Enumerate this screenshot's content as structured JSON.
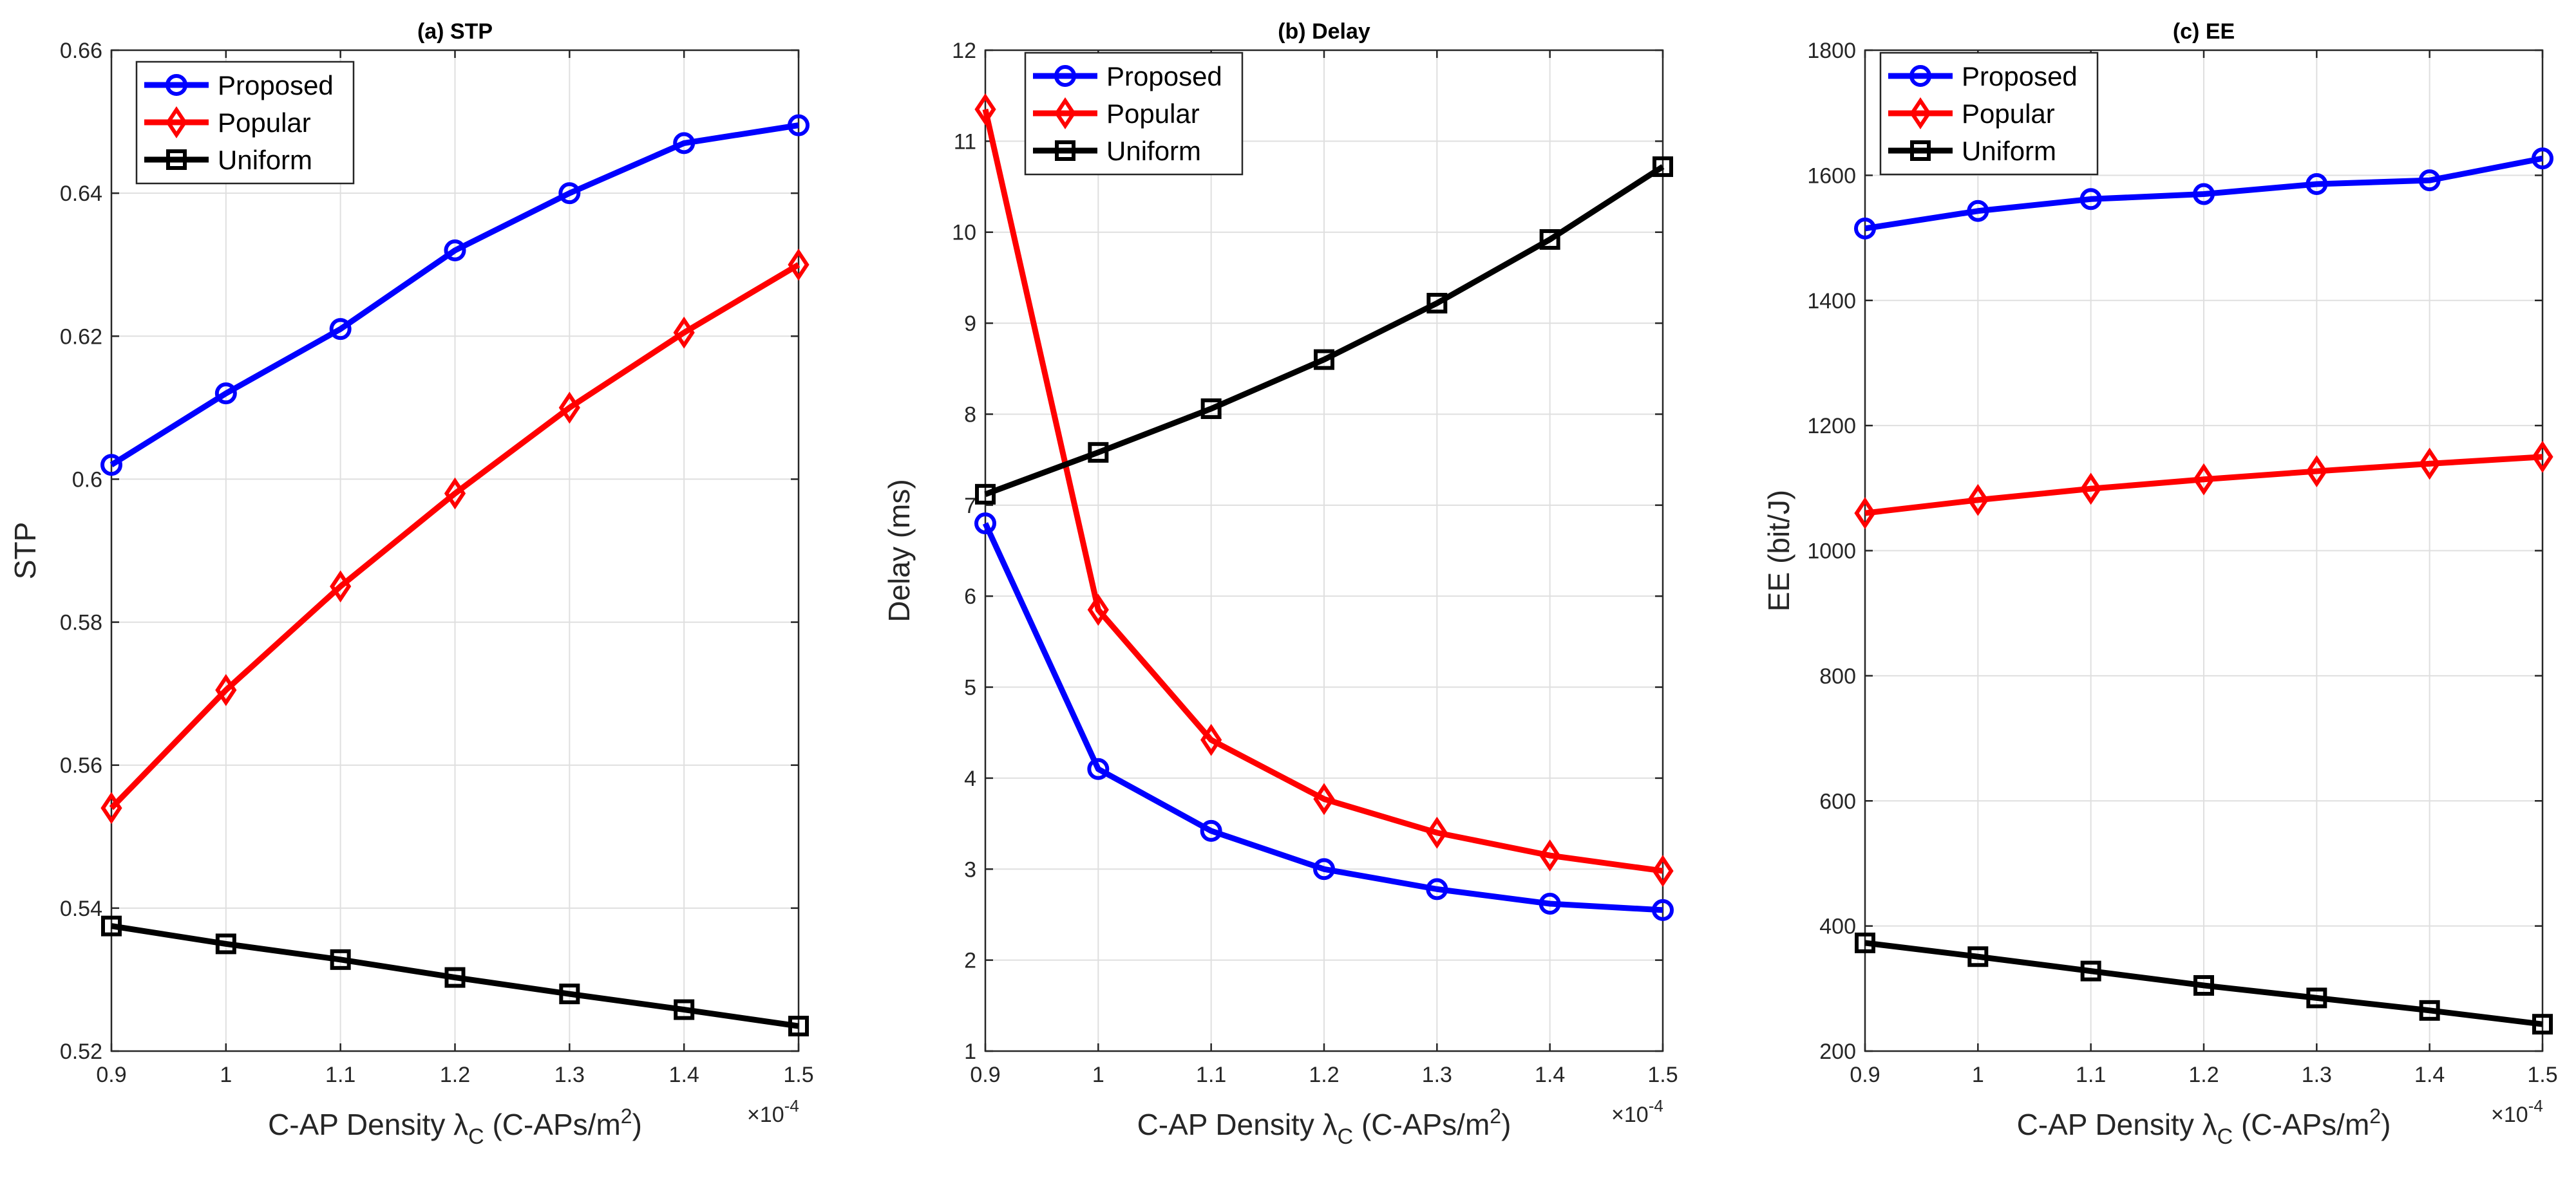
{
  "chart_data": [
    {
      "type": "line",
      "title": "(a) STP",
      "xlabel": "C-AP Density λ",
      "xlabel_sub": "C",
      "xlabel_unit_pre": " (C-APs/m",
      "xlabel_unit_sup": "2",
      "xlabel_unit_post": ")",
      "x_multiplier": "×10",
      "x_multiplier_exp": "-4",
      "ylabel": "STP",
      "x": [
        0.9,
        1.0,
        1.1,
        1.2,
        1.3,
        1.4,
        1.5
      ],
      "xlim": [
        0.9,
        1.5
      ],
      "ylim": [
        0.52,
        0.66
      ],
      "xticks": [
        0.9,
        1.0,
        1.1,
        1.2,
        1.3,
        1.4,
        1.5
      ],
      "xtick_labels": [
        "0.9",
        "1",
        "1.1",
        "1.2",
        "1.3",
        "1.4",
        "1.5"
      ],
      "yticks": [
        0.52,
        0.54,
        0.56,
        0.58,
        0.6,
        0.62,
        0.64,
        0.66
      ],
      "ytick_labels": [
        "0.52",
        "0.54",
        "0.56",
        "0.58",
        "0.6",
        "0.62",
        "0.64",
        "0.66"
      ],
      "grid": true,
      "legend_position": "top-left",
      "series": [
        {
          "name": "Proposed",
          "color": "#0000ff",
          "marker": "circle",
          "values": [
            0.602,
            0.612,
            0.621,
            0.632,
            0.64,
            0.647,
            0.6495
          ]
        },
        {
          "name": "Popular",
          "color": "#ff0000",
          "marker": "diamond",
          "values": [
            0.554,
            0.5705,
            0.585,
            0.598,
            0.61,
            0.6205,
            0.63
          ]
        },
        {
          "name": "Uniform",
          "color": "#000000",
          "marker": "square",
          "values": [
            0.5375,
            0.535,
            0.5328,
            0.5303,
            0.528,
            0.5258,
            0.5235
          ]
        }
      ]
    },
    {
      "type": "line",
      "title": "(b) Delay",
      "xlabel": "C-AP Density λ",
      "xlabel_sub": "C",
      "xlabel_unit_pre": " (C-APs/m",
      "xlabel_unit_sup": "2",
      "xlabel_unit_post": ")",
      "x_multiplier": "×10",
      "x_multiplier_exp": "-4",
      "ylabel": "Delay (ms)",
      "x": [
        0.9,
        1.0,
        1.1,
        1.2,
        1.3,
        1.4,
        1.5
      ],
      "xlim": [
        0.9,
        1.5
      ],
      "ylim": [
        1,
        12
      ],
      "xticks": [
        0.9,
        1.0,
        1.1,
        1.2,
        1.3,
        1.4,
        1.5
      ],
      "xtick_labels": [
        "0.9",
        "1",
        "1.1",
        "1.2",
        "1.3",
        "1.4",
        "1.5"
      ],
      "yticks": [
        1,
        2,
        3,
        4,
        5,
        6,
        7,
        8,
        9,
        10,
        11,
        12
      ],
      "ytick_labels": [
        "1",
        "2",
        "3",
        "4",
        "5",
        "6",
        "7",
        "8",
        "9",
        "10",
        "11",
        "12"
      ],
      "grid": true,
      "legend_position": "top-left",
      "series": [
        {
          "name": "Proposed",
          "color": "#0000ff",
          "marker": "circle",
          "values": [
            6.8,
            4.1,
            3.42,
            3.0,
            2.78,
            2.62,
            2.55
          ]
        },
        {
          "name": "Popular",
          "color": "#ff0000",
          "marker": "diamond",
          "values": [
            11.35,
            5.85,
            4.42,
            3.77,
            3.4,
            3.15,
            2.98
          ]
        },
        {
          "name": "Uniform",
          "color": "#000000",
          "marker": "square",
          "values": [
            7.12,
            7.58,
            8.06,
            8.6,
            9.22,
            9.92,
            10.72
          ]
        }
      ]
    },
    {
      "type": "line",
      "title": "(c) EE",
      "xlabel": "C-AP Density λ",
      "xlabel_sub": "C",
      "xlabel_unit_pre": " (C-APs/m",
      "xlabel_unit_sup": "2",
      "xlabel_unit_post": ")",
      "x_multiplier": "×10",
      "x_multiplier_exp": "-4",
      "ylabel": "EE (bit/J)",
      "x": [
        0.9,
        1.0,
        1.1,
        1.2,
        1.3,
        1.4,
        1.5
      ],
      "xlim": [
        0.9,
        1.5
      ],
      "ylim": [
        200,
        1800
      ],
      "xticks": [
        0.9,
        1.0,
        1.1,
        1.2,
        1.3,
        1.4,
        1.5
      ],
      "xtick_labels": [
        "0.9",
        "1",
        "1.1",
        "1.2",
        "1.3",
        "1.4",
        "1.5"
      ],
      "yticks": [
        200,
        400,
        600,
        800,
        1000,
        1200,
        1400,
        1600,
        1800
      ],
      "ytick_labels": [
        "200",
        "400",
        "600",
        "800",
        "1000",
        "1200",
        "1400",
        "1600",
        "1800"
      ],
      "grid": true,
      "legend_position": "top-left",
      "series": [
        {
          "name": "Proposed",
          "color": "#0000ff",
          "marker": "circle",
          "values": [
            1515,
            1543,
            1562,
            1570,
            1586,
            1592,
            1627
          ]
        },
        {
          "name": "Popular",
          "color": "#ff0000",
          "marker": "diamond",
          "values": [
            1060,
            1081,
            1099,
            1114,
            1127,
            1139,
            1150
          ]
        },
        {
          "name": "Uniform",
          "color": "#000000",
          "marker": "square",
          "values": [
            373,
            351,
            328,
            305,
            285,
            265,
            243
          ]
        }
      ]
    }
  ]
}
